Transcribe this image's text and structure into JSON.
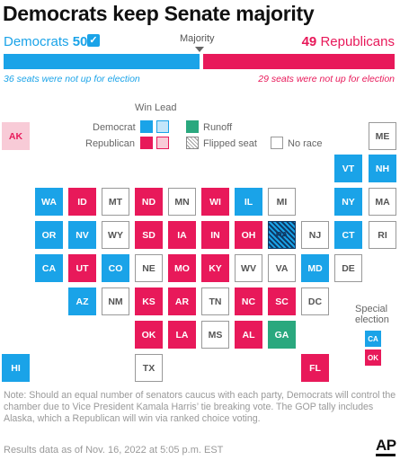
{
  "title": "Democrats keep Senate majority",
  "summary": {
    "dem_name": "Democrats",
    "dem_seats": "50",
    "rep_seats": "49",
    "rep_name": "Republicans",
    "majority_label": "Majority",
    "dem_not_up": "36 seats were not up for election",
    "rep_not_up": "29 seats were not up for election",
    "colors": {
      "democrat": "#1aa3e8",
      "republican": "#e8195a",
      "runoff": "#2aa87e"
    }
  },
  "legend": {
    "header": "Win Lead",
    "democrat": "Democrat",
    "republican": "Republican",
    "runoff": "Runoff",
    "flipped": "Flipped seat",
    "no_race": "No race"
  },
  "states": [
    {
      "abbr": "AK",
      "status": "LR"
    },
    {
      "abbr": "ME",
      "status": "N"
    },
    {
      "abbr": "VT",
      "status": "D"
    },
    {
      "abbr": "NH",
      "status": "D"
    },
    {
      "abbr": "WA",
      "status": "D"
    },
    {
      "abbr": "ID",
      "status": "R"
    },
    {
      "abbr": "MT",
      "status": "N"
    },
    {
      "abbr": "ND",
      "status": "R"
    },
    {
      "abbr": "MN",
      "status": "N"
    },
    {
      "abbr": "WI",
      "status": "R"
    },
    {
      "abbr": "IL",
      "status": "D"
    },
    {
      "abbr": "MI",
      "status": "N"
    },
    {
      "abbr": "NY",
      "status": "D"
    },
    {
      "abbr": "MA",
      "status": "N"
    },
    {
      "abbr": "OR",
      "status": "D"
    },
    {
      "abbr": "NV",
      "status": "D"
    },
    {
      "abbr": "WY",
      "status": "N"
    },
    {
      "abbr": "SD",
      "status": "R"
    },
    {
      "abbr": "IA",
      "status": "R"
    },
    {
      "abbr": "IN",
      "status": "R"
    },
    {
      "abbr": "OH",
      "status": "R"
    },
    {
      "abbr": "PA",
      "status": "F"
    },
    {
      "abbr": "NJ",
      "status": "N"
    },
    {
      "abbr": "CT",
      "status": "D"
    },
    {
      "abbr": "RI",
      "status": "N"
    },
    {
      "abbr": "CA",
      "status": "D"
    },
    {
      "abbr": "UT",
      "status": "R"
    },
    {
      "abbr": "CO",
      "status": "D"
    },
    {
      "abbr": "NE",
      "status": "N"
    },
    {
      "abbr": "MO",
      "status": "R"
    },
    {
      "abbr": "KY",
      "status": "R"
    },
    {
      "abbr": "WV",
      "status": "N"
    },
    {
      "abbr": "VA",
      "status": "N"
    },
    {
      "abbr": "MD",
      "status": "D"
    },
    {
      "abbr": "DE",
      "status": "N"
    },
    {
      "abbr": "AZ",
      "status": "D"
    },
    {
      "abbr": "NM",
      "status": "N"
    },
    {
      "abbr": "KS",
      "status": "R"
    },
    {
      "abbr": "AR",
      "status": "R"
    },
    {
      "abbr": "TN",
      "status": "N"
    },
    {
      "abbr": "NC",
      "status": "R"
    },
    {
      "abbr": "SC",
      "status": "R"
    },
    {
      "abbr": "DC",
      "status": "N"
    },
    {
      "abbr": "OK",
      "status": "R"
    },
    {
      "abbr": "LA",
      "status": "R"
    },
    {
      "abbr": "MS",
      "status": "N"
    },
    {
      "abbr": "AL",
      "status": "R"
    },
    {
      "abbr": "GA",
      "status": "G"
    },
    {
      "abbr": "HI",
      "status": "D"
    },
    {
      "abbr": "TX",
      "status": "N"
    },
    {
      "abbr": "FL",
      "status": "R"
    }
  ],
  "special_election": {
    "label_line1": "Special",
    "label_line2": "election",
    "items": [
      {
        "abbr": "CA",
        "party": "D"
      },
      {
        "abbr": "OK",
        "party": "R"
      }
    ]
  },
  "note": "Note: Should an equal number of senators caucus with each party, Democrats will control the chamber due to Vice President Kamala Harris’ tie breaking vote. The GOP tally includes Alaska, which a Republican will win via ranked choice voting.",
  "as_of": "Results data as of Nov. 16, 2022 at 5:05 p.m. EST",
  "logo": "AP"
}
